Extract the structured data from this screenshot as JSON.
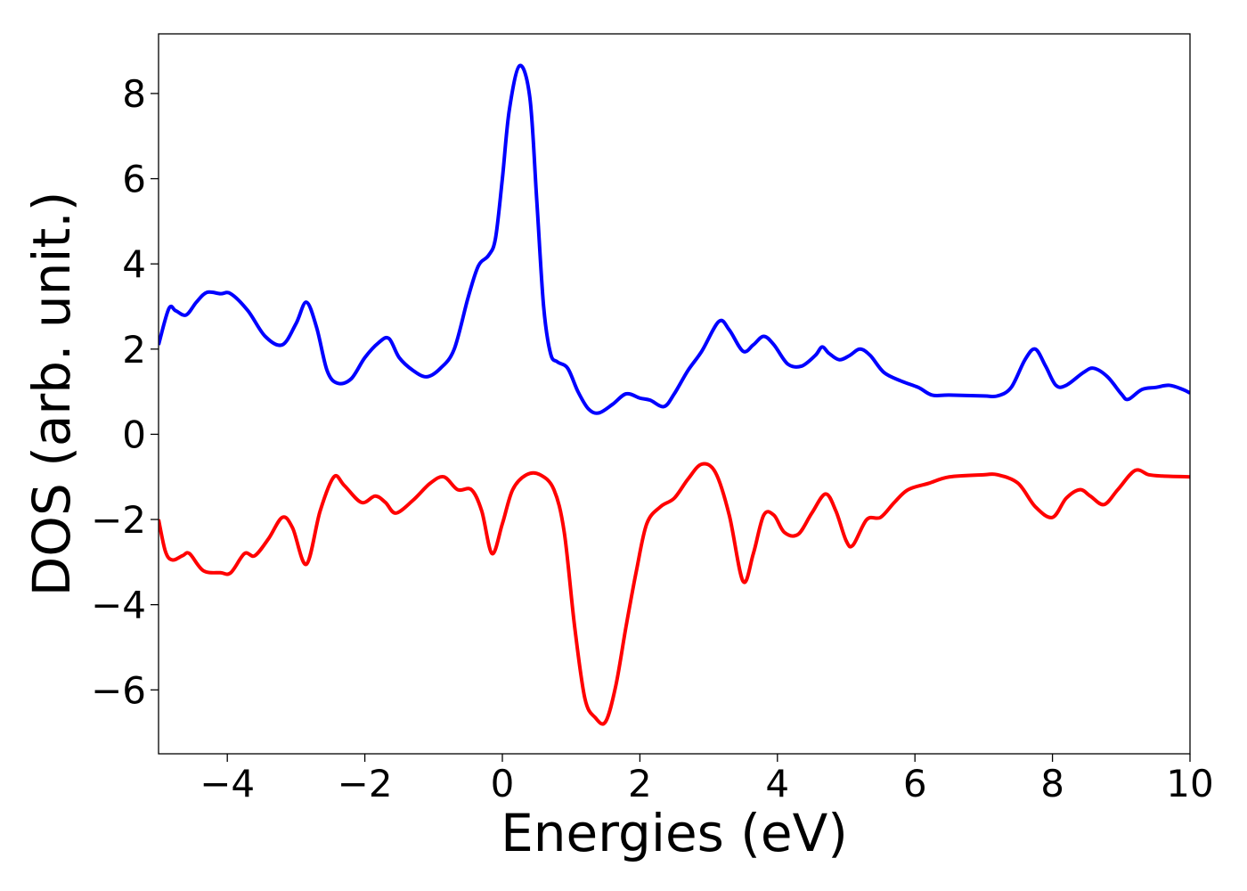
{
  "chart_data": {
    "type": "line",
    "xlabel": "Energies (eV)",
    "ylabel": "DOS (arb. unit.)",
    "xlim": [
      -5,
      10
    ],
    "ylim": [
      -7.5,
      9.4
    ],
    "xticks": [
      {
        "value": -4,
        "label": "−4"
      },
      {
        "value": -2,
        "label": "−2"
      },
      0,
      2,
      4,
      6,
      8,
      10
    ],
    "yticks": [
      {
        "value": -6,
        "label": "−6"
      },
      {
        "value": -4,
        "label": "−4"
      },
      {
        "value": -2,
        "label": "−2"
      },
      0,
      2,
      4,
      6,
      8
    ],
    "grid": false,
    "series": [
      {
        "color": "#0000ff",
        "x": [
          -5.0,
          -4.85,
          -4.75,
          -4.6,
          -4.45,
          -4.3,
          -4.1,
          -3.95,
          -3.7,
          -3.45,
          -3.2,
          -3.0,
          -2.85,
          -2.7,
          -2.55,
          -2.4,
          -2.2,
          -2.0,
          -1.8,
          -1.65,
          -1.5,
          -1.3,
          -1.1,
          -0.9,
          -0.7,
          -0.5,
          -0.35,
          -0.2,
          -0.1,
          0.0,
          0.1,
          0.25,
          0.4,
          0.5,
          0.6,
          0.7,
          0.8,
          0.95,
          1.1,
          1.25,
          1.4,
          1.6,
          1.8,
          2.0,
          2.15,
          2.35,
          2.5,
          2.7,
          2.9,
          3.15,
          3.3,
          3.5,
          3.65,
          3.8,
          3.95,
          4.15,
          4.35,
          4.55,
          4.65,
          4.75,
          4.9,
          5.05,
          5.2,
          5.35,
          5.55,
          5.8,
          6.05,
          6.25,
          6.5,
          7.0,
          7.2,
          7.4,
          7.6,
          7.75,
          7.9,
          8.05,
          8.2,
          8.45,
          8.6,
          8.8,
          9.0,
          9.1,
          9.3,
          9.5,
          9.7,
          9.9,
          10.0
        ],
        "values": [
          2.1,
          2.95,
          2.9,
          2.8,
          3.1,
          3.33,
          3.3,
          3.3,
          2.9,
          2.3,
          2.1,
          2.6,
          3.1,
          2.5,
          1.5,
          1.2,
          1.3,
          1.8,
          2.15,
          2.25,
          1.8,
          1.5,
          1.35,
          1.55,
          2.0,
          3.2,
          3.95,
          4.2,
          4.6,
          6.0,
          7.6,
          8.65,
          7.9,
          5.5,
          3.0,
          1.9,
          1.7,
          1.55,
          1.0,
          0.6,
          0.5,
          0.7,
          0.95,
          0.85,
          0.8,
          0.65,
          0.95,
          1.5,
          1.95,
          2.65,
          2.45,
          1.95,
          2.1,
          2.3,
          2.1,
          1.65,
          1.6,
          1.85,
          2.05,
          1.9,
          1.75,
          1.85,
          2.0,
          1.85,
          1.45,
          1.25,
          1.1,
          0.92,
          0.92,
          0.9,
          0.9,
          1.1,
          1.75,
          2.0,
          1.6,
          1.15,
          1.15,
          1.45,
          1.55,
          1.35,
          0.95,
          0.82,
          1.05,
          1.1,
          1.15,
          1.05,
          0.97
        ]
      },
      {
        "color": "#ff0000",
        "x": [
          -5.0,
          -4.9,
          -4.8,
          -4.65,
          -4.55,
          -4.35,
          -4.1,
          -3.95,
          -3.75,
          -3.6,
          -3.4,
          -3.2,
          -3.05,
          -2.85,
          -2.65,
          -2.45,
          -2.3,
          -2.05,
          -1.85,
          -1.7,
          -1.55,
          -1.3,
          -1.05,
          -0.85,
          -0.65,
          -0.45,
          -0.3,
          -0.15,
          0.0,
          0.15,
          0.35,
          0.55,
          0.75,
          0.9,
          1.05,
          1.2,
          1.35,
          1.5,
          1.65,
          1.8,
          1.95,
          2.1,
          2.3,
          2.5,
          2.7,
          2.9,
          3.1,
          3.3,
          3.5,
          3.65,
          3.8,
          3.95,
          4.1,
          4.3,
          4.5,
          4.7,
          4.85,
          5.0,
          5.1,
          5.3,
          5.5,
          5.7,
          5.9,
          6.2,
          6.5,
          7.0,
          7.2,
          7.5,
          7.75,
          8.0,
          8.2,
          8.4,
          8.55,
          8.75,
          8.95,
          9.2,
          9.4,
          9.6,
          10.0
        ],
        "values": [
          -2.0,
          -2.75,
          -2.95,
          -2.85,
          -2.8,
          -3.2,
          -3.25,
          -3.25,
          -2.8,
          -2.85,
          -2.45,
          -1.95,
          -2.2,
          -3.05,
          -1.8,
          -1.0,
          -1.2,
          -1.6,
          -1.45,
          -1.6,
          -1.85,
          -1.55,
          -1.15,
          -1.0,
          -1.3,
          -1.3,
          -1.8,
          -2.8,
          -2.1,
          -1.3,
          -0.95,
          -0.95,
          -1.3,
          -2.3,
          -4.5,
          -6.2,
          -6.65,
          -6.75,
          -5.9,
          -4.5,
          -3.2,
          -2.1,
          -1.7,
          -1.5,
          -1.05,
          -0.7,
          -0.9,
          -1.9,
          -3.45,
          -2.8,
          -1.9,
          -1.9,
          -2.3,
          -2.35,
          -1.85,
          -1.4,
          -1.8,
          -2.5,
          -2.6,
          -2.0,
          -1.95,
          -1.6,
          -1.3,
          -1.15,
          -1.0,
          -0.95,
          -0.95,
          -1.15,
          -1.7,
          -1.95,
          -1.5,
          -1.3,
          -1.45,
          -1.65,
          -1.3,
          -0.85,
          -0.95,
          -0.98,
          -1.0
        ]
      }
    ]
  }
}
